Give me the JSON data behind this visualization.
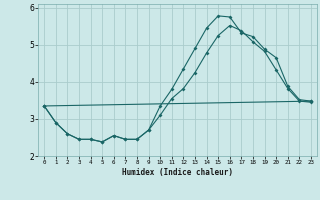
{
  "xlabel": "Humidex (Indice chaleur)",
  "xlim": [
    -0.5,
    23.5
  ],
  "ylim": [
    2,
    6.1
  ],
  "yticks": [
    2,
    3,
    4,
    5,
    6
  ],
  "xticks": [
    0,
    1,
    2,
    3,
    4,
    5,
    6,
    7,
    8,
    9,
    10,
    11,
    12,
    13,
    14,
    15,
    16,
    17,
    18,
    19,
    20,
    21,
    22,
    23
  ],
  "background_color": "#cce8e8",
  "grid_color": "#aacccc",
  "line_color": "#1a6666",
  "line1_x": [
    0,
    1,
    2,
    3,
    4,
    5,
    6,
    7,
    8,
    9,
    10,
    11,
    12,
    13,
    14,
    15,
    16,
    17,
    18,
    19,
    20,
    21,
    22,
    23
  ],
  "line1_y": [
    3.35,
    2.9,
    2.6,
    2.45,
    2.45,
    2.38,
    2.55,
    2.45,
    2.45,
    2.7,
    3.35,
    3.8,
    4.35,
    4.9,
    5.45,
    5.78,
    5.75,
    5.32,
    5.22,
    4.88,
    4.65,
    3.88,
    3.52,
    3.48
  ],
  "line2_x": [
    0,
    1,
    2,
    3,
    4,
    5,
    6,
    7,
    8,
    9,
    10,
    11,
    12,
    13,
    14,
    15,
    16,
    17,
    18,
    19,
    20,
    21,
    22,
    23
  ],
  "line2_y": [
    3.35,
    2.9,
    2.6,
    2.45,
    2.45,
    2.38,
    2.55,
    2.45,
    2.45,
    2.7,
    3.1,
    3.55,
    3.82,
    4.25,
    4.78,
    5.25,
    5.52,
    5.38,
    5.08,
    4.82,
    4.32,
    3.82,
    3.48,
    3.45
  ],
  "line3_x": [
    0,
    23
  ],
  "line3_y": [
    3.35,
    3.48
  ],
  "markersize": 2.0,
  "linewidth": 0.8
}
